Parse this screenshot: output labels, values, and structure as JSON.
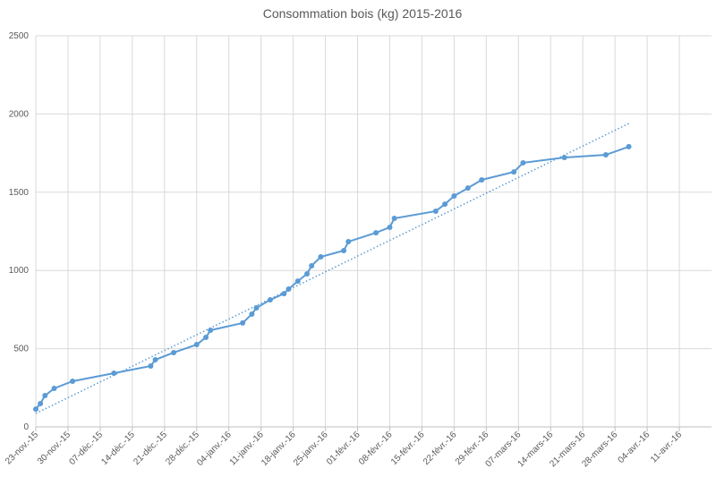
{
  "chart_data": {
    "type": "line",
    "title": "Consommation bois (kg) 2015-2016",
    "x": [
      "2015-11-23",
      "2015-11-24",
      "2015-11-25",
      "2015-11-27",
      "2015-12-01",
      "2015-12-10",
      "2015-12-18",
      "2015-12-19",
      "2015-12-23",
      "2015-12-28",
      "2015-12-30",
      "2015-12-31",
      "2016-01-07",
      "2016-01-09",
      "2016-01-10",
      "2016-01-13",
      "2016-01-16",
      "2016-01-17",
      "2016-01-19",
      "2016-01-21",
      "2016-01-22",
      "2016-01-24",
      "2016-01-29",
      "2016-01-30",
      "2016-02-05",
      "2016-02-08",
      "2016-02-09",
      "2016-02-18",
      "2016-02-20",
      "2016-02-22",
      "2016-02-25",
      "2016-02-28",
      "2016-03-06",
      "2016-03-08",
      "2016-03-17",
      "2016-03-26",
      "2016-03-31"
    ],
    "series": [
      {
        "color": "#5b9bd5",
        "values": [
          114,
          149,
          200,
          246,
          292,
          343,
          389,
          429,
          475,
          526,
          572,
          618,
          664,
          721,
          761,
          812,
          852,
          881,
          932,
          978,
          1030,
          1087,
          1127,
          1184,
          1241,
          1276,
          1333,
          1379,
          1424,
          1476,
          1527,
          1579,
          1630,
          1688,
          1722,
          1739,
          1791
        ]
      }
    ],
    "trendline": {
      "x": [
        "2015-11-23",
        "2016-03-31"
      ],
      "values": [
        86,
        1939
      ],
      "color": "#5b9bd5",
      "style": "dotted"
    },
    "xlim": [
      "2015-11-23",
      "2016-04-18"
    ],
    "xticks": [
      {
        "value": "2015-11-23",
        "label": "23-nov.-15"
      },
      {
        "value": "2015-11-30",
        "label": "30-nov.-15"
      },
      {
        "value": "2015-12-07",
        "label": "07-déc.-15"
      },
      {
        "value": "2015-12-14",
        "label": "14-déc.-15"
      },
      {
        "value": "2015-12-21",
        "label": "21-déc.-15"
      },
      {
        "value": "2015-12-28",
        "label": "28-déc.-15"
      },
      {
        "value": "2016-01-04",
        "label": "04-janv.-16"
      },
      {
        "value": "2016-01-11",
        "label": "11-janv.-16"
      },
      {
        "value": "2016-01-18",
        "label": "18-janv.-16"
      },
      {
        "value": "2016-01-25",
        "label": "25-janv.-16"
      },
      {
        "value": "2016-02-01",
        "label": "01-févr.-16"
      },
      {
        "value": "2016-02-08",
        "label": "08-févr.-16"
      },
      {
        "value": "2016-02-15",
        "label": "15-févr.-16"
      },
      {
        "value": "2016-02-22",
        "label": "22-févr.-16"
      },
      {
        "value": "2016-02-29",
        "label": "29-févr.-16"
      },
      {
        "value": "2016-03-07",
        "label": "07-mars-16"
      },
      {
        "value": "2016-03-14",
        "label": "14-mars-16"
      },
      {
        "value": "2016-03-21",
        "label": "21-mars-16"
      },
      {
        "value": "2016-03-28",
        "label": "28-mars-16"
      },
      {
        "value": "2016-04-04",
        "label": "04-avr.-16"
      },
      {
        "value": "2016-04-11",
        "label": "11-avr.-16"
      }
    ],
    "ylim": [
      0,
      2500
    ],
    "yticks": [
      0,
      500,
      1000,
      1500,
      2000,
      2500
    ],
    "grid": true
  }
}
